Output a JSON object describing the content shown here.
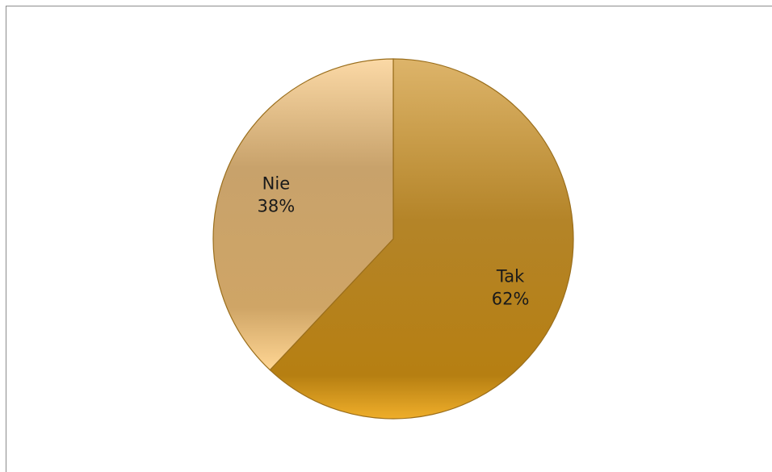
{
  "chart_data": {
    "type": "pie",
    "categories": [
      "Tak",
      "Nie"
    ],
    "values": [
      62,
      38
    ],
    "value_labels": [
      "62%",
      "38%"
    ],
    "colors": {
      "Tak": "#B8821E",
      "Nie": "#D8B274",
      "border": "#9A6E1C"
    },
    "legend": "none"
  }
}
